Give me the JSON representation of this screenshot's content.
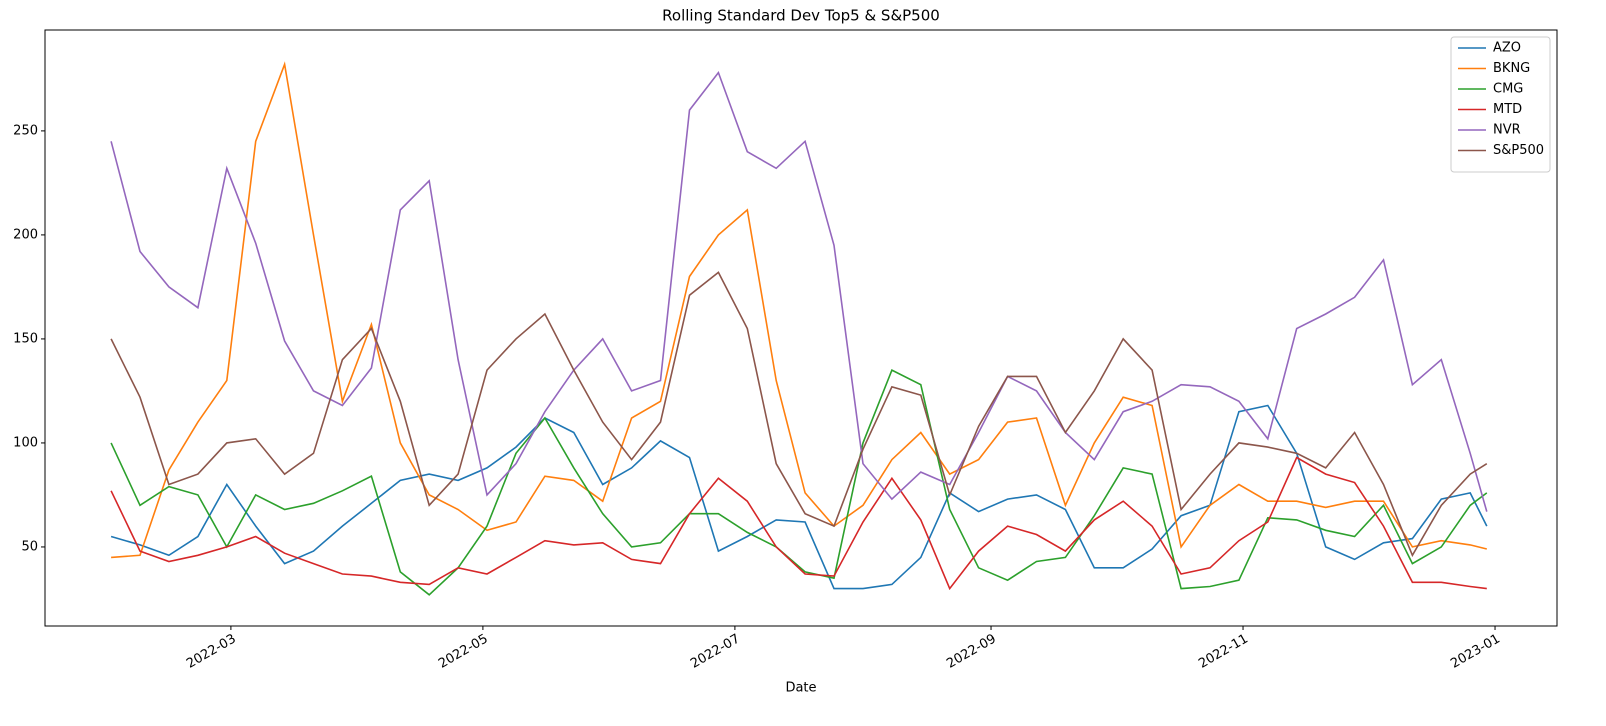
{
  "chart_data": {
    "type": "line",
    "title": "Rolling Standard Dev Top5 & S&P500",
    "xlabel": "Date",
    "x": [
      "2022-01-31",
      "2022-02-07",
      "2022-02-14",
      "2022-02-21",
      "2022-02-28",
      "2022-03-07",
      "2022-03-14",
      "2022-03-21",
      "2022-03-28",
      "2022-04-04",
      "2022-04-11",
      "2022-04-18",
      "2022-04-25",
      "2022-05-02",
      "2022-05-09",
      "2022-05-16",
      "2022-05-23",
      "2022-05-30",
      "2022-06-06",
      "2022-06-13",
      "2022-06-20",
      "2022-06-27",
      "2022-07-04",
      "2022-07-11",
      "2022-07-18",
      "2022-07-25",
      "2022-08-01",
      "2022-08-08",
      "2022-08-15",
      "2022-08-22",
      "2022-08-29",
      "2022-09-05",
      "2022-09-12",
      "2022-09-19",
      "2022-09-26",
      "2022-10-03",
      "2022-10-10",
      "2022-10-17",
      "2022-10-24",
      "2022-10-31",
      "2022-11-07",
      "2022-11-14",
      "2022-11-21",
      "2022-11-28",
      "2022-12-05",
      "2022-12-12",
      "2022-12-19",
      "2022-12-26",
      "2022-12-30"
    ],
    "series": [
      {
        "name": "AZO",
        "color": "#1f77b4",
        "values": [
          55,
          51,
          46,
          55,
          80,
          60,
          42,
          48,
          60,
          71,
          82,
          85,
          82,
          88,
          98,
          112,
          105,
          80,
          88,
          101,
          93,
          48,
          55,
          63,
          62,
          30,
          30,
          32,
          45,
          76,
          67,
          73,
          75,
          68,
          40,
          40,
          49,
          65,
          70,
          115,
          118,
          95,
          50,
          44,
          52,
          54,
          73,
          76,
          60
        ]
      },
      {
        "name": "BKNG",
        "color": "#ff7f0e",
        "values": [
          45,
          46,
          87,
          110,
          130,
          245,
          282,
          200,
          120,
          157,
          100,
          75,
          68,
          58,
          62,
          84,
          82,
          72,
          112,
          120,
          180,
          200,
          212,
          130,
          76,
          60,
          70,
          92,
          105,
          85,
          92,
          110,
          112,
          70,
          100,
          122,
          118,
          50,
          70,
          80,
          72,
          72,
          69,
          72,
          72,
          50,
          53,
          51,
          49
        ]
      },
      {
        "name": "CMG",
        "color": "#2ca02c",
        "values": [
          100,
          70,
          79,
          75,
          50,
          75,
          68,
          71,
          77,
          84,
          38,
          27,
          40,
          60,
          95,
          112,
          88,
          66,
          50,
          52,
          66,
          66,
          57,
          50,
          38,
          35,
          100,
          135,
          128,
          68,
          40,
          34,
          43,
          45,
          65,
          88,
          85,
          30,
          31,
          34,
          64,
          63,
          58,
          55,
          70,
          42,
          50,
          70,
          76
        ]
      },
      {
        "name": "MTD",
        "color": "#d62728",
        "values": [
          77,
          48,
          43,
          46,
          50,
          55,
          47,
          42,
          37,
          36,
          33,
          32,
          40,
          37,
          45,
          53,
          51,
          52,
          44,
          42,
          66,
          83,
          72,
          50,
          37,
          36,
          62,
          83,
          63,
          30,
          48,
          60,
          56,
          48,
          63,
          72,
          60,
          37,
          40,
          53,
          62,
          93,
          85,
          81,
          60,
          33,
          33,
          31,
          30
        ]
      },
      {
        "name": "NVR",
        "color": "#9467bd",
        "values": [
          245,
          192,
          175,
          165,
          232,
          196,
          149,
          125,
          118,
          136,
          212,
          226,
          140,
          75,
          90,
          115,
          135,
          150,
          125,
          130,
          260,
          278,
          240,
          232,
          245,
          195,
          90,
          73,
          86,
          80,
          105,
          132,
          125,
          105,
          92,
          115,
          120,
          128,
          127,
          120,
          102,
          155,
          162,
          170,
          188,
          128,
          140,
          95,
          67
        ]
      },
      {
        "name": "S&P500",
        "color": "#8c564b",
        "values": [
          150,
          122,
          80,
          85,
          100,
          102,
          85,
          95,
          140,
          155,
          120,
          70,
          85,
          135,
          150,
          162,
          135,
          110,
          92,
          110,
          171,
          182,
          155,
          90,
          66,
          60,
          97,
          127,
          123,
          75,
          108,
          132,
          132,
          105,
          125,
          150,
          135,
          68,
          85,
          100,
          98,
          95,
          88,
          105,
          80,
          46,
          70,
          85,
          90
        ]
      }
    ],
    "xlim": [
      "2022-01-15",
      "2023-01-16"
    ],
    "xticks": [
      {
        "value": "2022-03-01",
        "label": "2022-03"
      },
      {
        "value": "2022-05-01",
        "label": "2022-05"
      },
      {
        "value": "2022-07-01",
        "label": "2022-07"
      },
      {
        "value": "2022-09-01",
        "label": "2022-09"
      },
      {
        "value": "2022-11-01",
        "label": "2022-11"
      },
      {
        "value": "2023-01-01",
        "label": "2023-01"
      }
    ],
    "ylim": [
      12,
      298.5
    ],
    "yticks": [
      50,
      100,
      150,
      200,
      250
    ],
    "grid": false,
    "legend": "upper right"
  }
}
